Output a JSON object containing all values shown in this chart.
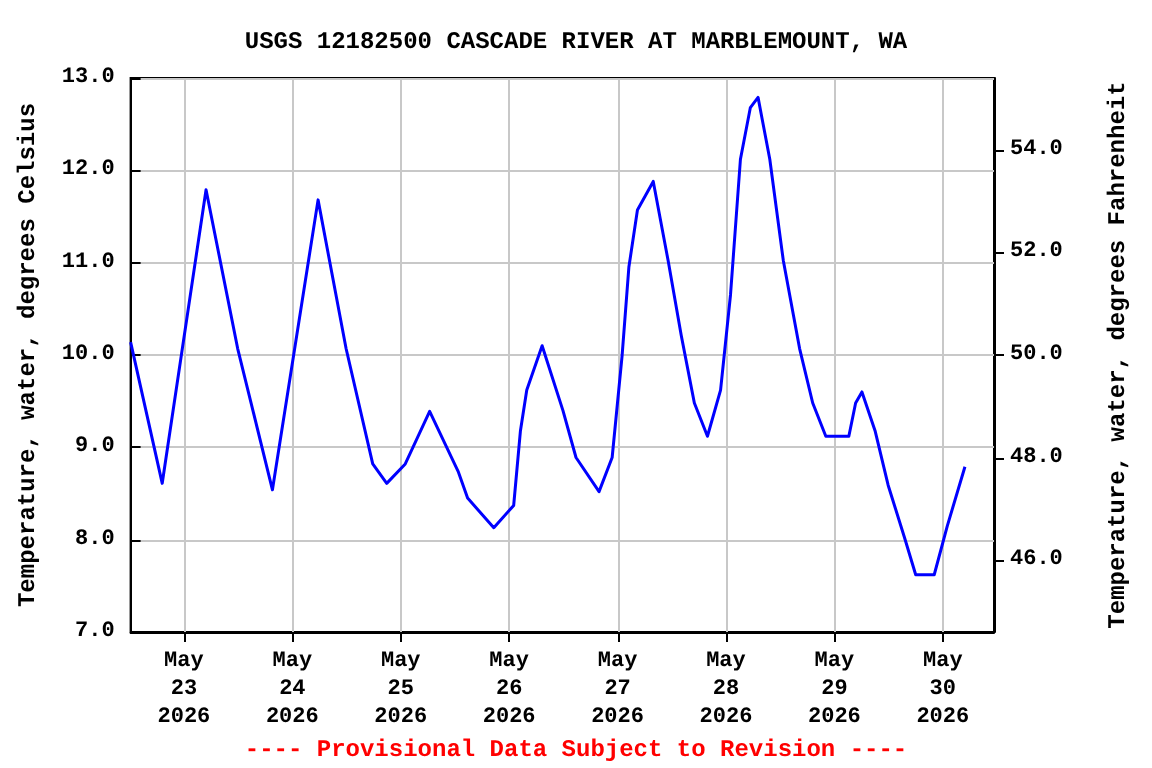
{
  "chart_data": {
    "type": "line",
    "title": "USGS 12182500 CASCADE RIVER AT MARBLEMOUNT, WA",
    "ylabel": "Temperature, water, degrees Celsius",
    "y2label": "Temperature, water, degrees Fahrenheit",
    "annotations": [
      "---- Provisional Data Subject to Revision ----"
    ],
    "x": [
      "2026-05-22T12:12",
      "2026-05-22T19:12",
      "2026-05-23T04:54",
      "2026-05-23T11:54",
      "2026-05-23T19:36",
      "2026-05-24T05:42",
      "2026-05-24T11:54",
      "2026-05-24T17:48",
      "2026-05-24T20:54",
      "2026-05-25T01:00",
      "2026-05-25T06:24",
      "2026-05-25T12:42",
      "2026-05-25T14:48",
      "2026-05-25T20:36",
      "2026-05-26T01:00",
      "2026-05-26T02:30",
      "2026-05-26T03:54",
      "2026-05-26T07:18",
      "2026-05-26T11:54",
      "2026-05-26T14:48",
      "2026-05-26T19:54",
      "2026-05-26T22:48",
      "2026-05-27T01:00",
      "2026-05-27T02:30",
      "2026-05-27T04:24",
      "2026-05-27T07:54",
      "2026-05-27T11:12",
      "2026-05-27T14:06",
      "2026-05-27T17:00",
      "2026-05-27T19:54",
      "2026-05-27T22:48",
      "2026-05-28T01:00",
      "2026-05-28T03:12",
      "2026-05-28T05:24",
      "2026-05-28T07:06",
      "2026-05-28T09:42",
      "2026-05-28T12:42",
      "2026-05-28T16:18",
      "2026-05-28T19:12",
      "2026-05-28T22:06",
      "2026-05-29T03:12",
      "2026-05-29T04:42",
      "2026-05-29T06:06",
      "2026-05-29T09:00",
      "2026-05-29T11:54",
      "2026-05-29T15:36",
      "2026-05-29T18:00",
      "2026-05-29T22:06",
      "2026-05-30T01:00",
      "2026-05-30T04:54"
    ],
    "series": [
      {
        "color": "#0000ff",
        "values": [
          10.14,
          8.61,
          11.79,
          10.07,
          8.54,
          11.68,
          10.07,
          8.82,
          8.61,
          8.82,
          9.39,
          8.74,
          8.45,
          8.13,
          8.37,
          9.18,
          9.62,
          10.1,
          9.4,
          8.89,
          8.52,
          8.89,
          9.99,
          10.95,
          11.57,
          11.88,
          11.02,
          10.21,
          9.48,
          9.12,
          9.62,
          10.65,
          12.12,
          12.68,
          12.79,
          12.12,
          11.02,
          10.07,
          9.48,
          9.12,
          9.12,
          9.48,
          9.6,
          9.18,
          8.59,
          8.01,
          7.62,
          7.62,
          8.15,
          8.79
        ]
      }
    ],
    "xlim": [
      "2026-05-22T12:12",
      "2026-05-30T11:20"
    ],
    "xticks": [
      {
        "value": "2026-05-23",
        "label": "May\n23\n2026"
      },
      {
        "value": "2026-05-24",
        "label": "May\n24\n2026"
      },
      {
        "value": "2026-05-25",
        "label": "May\n25\n2026"
      },
      {
        "value": "2026-05-26",
        "label": "May\n26\n2026"
      },
      {
        "value": "2026-05-27",
        "label": "May\n27\n2026"
      },
      {
        "value": "2026-05-28",
        "label": "May\n28\n2026"
      },
      {
        "value": "2026-05-29",
        "label": "May\n29\n2026"
      },
      {
        "value": "2026-05-30",
        "label": "May\n30\n2026"
      }
    ],
    "ylim": [
      7.0,
      13.0
    ],
    "yticks": [
      {
        "value": 7,
        "label": "7.0"
      },
      {
        "value": 8,
        "label": "8.0"
      },
      {
        "value": 9,
        "label": "9.0"
      },
      {
        "value": 10,
        "label": "10.0"
      },
      {
        "value": 11,
        "label": "11.0"
      },
      {
        "value": 12,
        "label": "12.0"
      },
      {
        "value": 13,
        "label": "13.0"
      }
    ],
    "y2lim": [
      44.6,
      55.4
    ],
    "y2ticks": [
      {
        "value": 46,
        "label": "46.0"
      },
      {
        "value": 48,
        "label": "48.0"
      },
      {
        "value": 50,
        "label": "50.0"
      },
      {
        "value": 52,
        "label": "52.0"
      },
      {
        "value": 54,
        "label": "54.0"
      }
    ],
    "grid": true,
    "marker": "none",
    "line_style": "solid"
  }
}
